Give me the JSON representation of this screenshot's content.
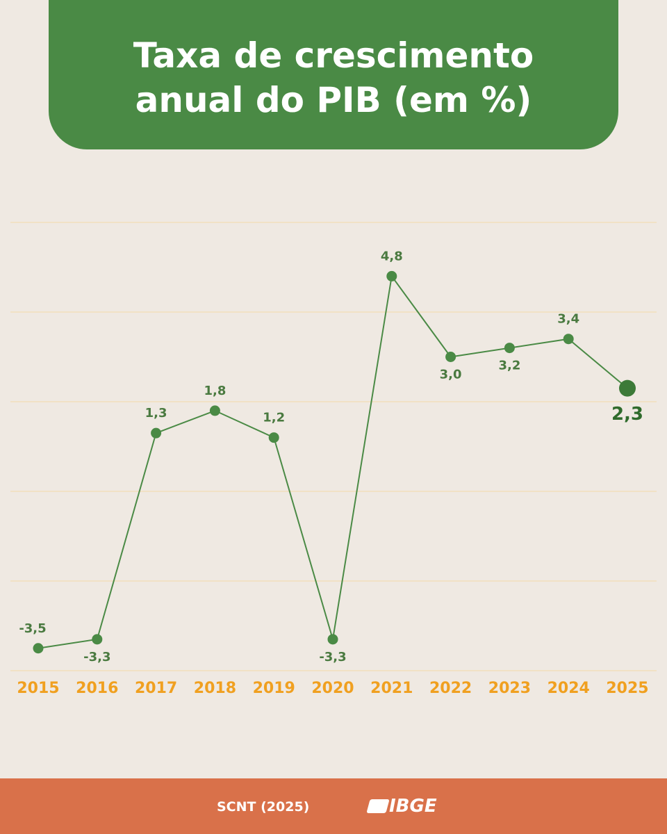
{
  "chart_data": {
    "type": "line",
    "title": "Taxa de crescimento anual do PIB (em %)",
    "categories": [
      "2015",
      "2016",
      "2017",
      "2018",
      "2019",
      "2020",
      "2021",
      "2022",
      "2023",
      "2024",
      "2025"
    ],
    "values": [
      -3.5,
      -3.3,
      1.3,
      1.8,
      1.2,
      -3.3,
      4.8,
      3.0,
      3.2,
      3.4,
      2.3
    ],
    "value_labels": [
      "-3,5",
      "-3,3",
      "1,3",
      "1,8",
      "1,2",
      "-3,3",
      "4,8",
      "3,0",
      "3,2",
      "3,4",
      "2,3"
    ],
    "color": "#4a8a45",
    "ylim": [
      -4,
      6
    ],
    "yticks": [
      -4,
      -2,
      0,
      2,
      4,
      6
    ],
    "grid": true
  },
  "footer": {
    "source": "SCNT (2025)",
    "logo": "IBGE"
  }
}
